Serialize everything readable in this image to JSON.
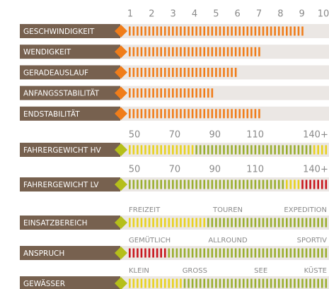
{
  "ratings": {
    "ticks": [
      1,
      2,
      3,
      4,
      5,
      6,
      7,
      8,
      9,
      10
    ],
    "color": "#f07d1a",
    "rows": [
      {
        "label": "GESCHWINDIGKEIT",
        "value": 9.2
      },
      {
        "label": "WENDIGKEIT",
        "value": 7.2
      },
      {
        "label": "GERADEAUSLAUF",
        "value": 6.1
      },
      {
        "label": "ANFANGSSTABILITÄT",
        "value": 5.0
      },
      {
        "label": "ENDSTABILITÄT",
        "value": 7.2
      }
    ]
  },
  "weight": {
    "rows": [
      {
        "label": "FAHRERGEWICHT HV",
        "ticks": [
          50,
          70,
          90,
          110,
          {
            "value": 140,
            "label": "140+"
          }
        ],
        "segments": [
          {
            "color": "#e8d21f",
            "stripes": 17
          },
          {
            "color": "#9aae2e",
            "stripes": 30
          },
          {
            "color": "#e8d21f",
            "stripes": 4
          }
        ]
      },
      {
        "label": "FAHRERGEWICHT LV",
        "ticks": [
          50,
          70,
          90,
          110,
          {
            "value": 140,
            "label": "140+"
          }
        ],
        "segments": [
          {
            "color": "#9aae2e",
            "stripes": 40
          },
          {
            "color": "#e8d21f",
            "stripes": 4
          },
          {
            "color": "#c8161d",
            "stripes": 7
          }
        ]
      }
    ]
  },
  "usage": {
    "rows": [
      {
        "label": "EINSATZBEREICH",
        "scale": [
          "FREIZEIT",
          "TOUREN",
          "EXPEDITION"
        ],
        "segments": [
          {
            "color": "#e8d21f",
            "stripes": 20
          },
          {
            "color": "#9aae2e",
            "stripes": 31
          }
        ]
      },
      {
        "label": "ANSPRUCH",
        "scale": [
          "GEMÜTLICH",
          "ALLROUND",
          "SPORTIV"
        ],
        "segments": [
          {
            "color": "#c8161d",
            "stripes": 10
          },
          {
            "color": "#9aae2e",
            "stripes": 41
          }
        ]
      },
      {
        "label": "GEWÄSSER",
        "scale": [
          "KLEIN",
          "GROSS",
          "SEE",
          "KÜSTE"
        ],
        "segments": [
          {
            "color": "#e8d21f",
            "stripes": 14
          },
          {
            "color": "#9aae2e",
            "stripes": 37
          }
        ]
      }
    ]
  }
}
